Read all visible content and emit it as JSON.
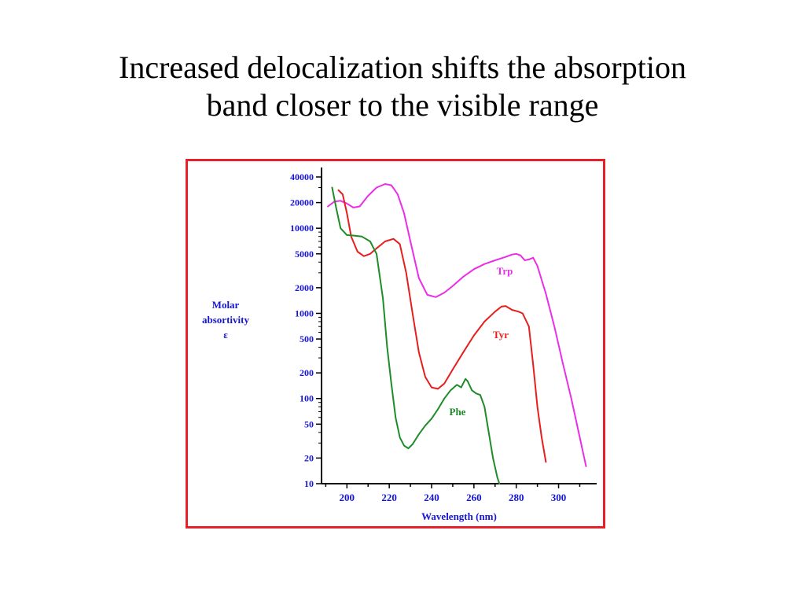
{
  "slide": {
    "title_line1": "Increased delocalization shifts the absorption",
    "title_line2": "band closer to the visible range"
  },
  "colors": {
    "frame": "#e8202a",
    "axis_label": "#1515d6",
    "trp": "#ea2ee8",
    "tyr": "#e61e1e",
    "phe": "#1e8c28"
  },
  "chart_data": {
    "type": "line",
    "title": "",
    "xlabel": "Wavelength (nm)",
    "ylabel_lines": [
      "Molar",
      "absortivity",
      "ε"
    ],
    "yscale": "log",
    "xlim": [
      188,
      318
    ],
    "ylim": [
      10,
      50000
    ],
    "x_ticks": [
      200,
      220,
      240,
      260,
      280,
      300
    ],
    "y_ticks": [
      10,
      20,
      50,
      100,
      200,
      500,
      1000,
      2000,
      5000,
      10000,
      20000,
      40000
    ],
    "y_tick_labels": [
      "10",
      "20",
      "50",
      "100",
      "200",
      "500",
      "1000",
      "2000",
      "5000",
      "10000",
      "20000",
      "40000"
    ],
    "grid": false,
    "series": [
      {
        "name": "Trp",
        "color": "#ea2ee8",
        "x": [
          191,
          194,
          197,
          200,
          203,
          206,
          210,
          214,
          218,
          221,
          224,
          227,
          230,
          234,
          238,
          242,
          246,
          250,
          255,
          260,
          265,
          270,
          275,
          278,
          280,
          282,
          284,
          286,
          288,
          290,
          294,
          298,
          302,
          306,
          310,
          313
        ],
        "y": [
          18000,
          20500,
          21000,
          19500,
          17500,
          18000,
          24000,
          30000,
          33000,
          32000,
          25000,
          15000,
          7000,
          2600,
          1650,
          1550,
          1750,
          2100,
          2700,
          3300,
          3800,
          4200,
          4600,
          4900,
          5000,
          4800,
          4200,
          4300,
          4500,
          3600,
          1700,
          700,
          260,
          100,
          35,
          16
        ]
      },
      {
        "name": "Tyr",
        "color": "#e61e1e",
        "x": [
          196,
          198,
          200,
          202,
          205,
          208,
          211,
          214,
          218,
          222,
          225,
          228,
          231,
          234,
          237,
          240,
          243,
          246,
          250,
          255,
          260,
          265,
          270,
          273,
          275,
          278,
          281,
          283,
          286,
          288,
          290,
          292,
          294
        ],
        "y": [
          28000,
          25000,
          15000,
          8000,
          5300,
          4700,
          5000,
          5800,
          7000,
          7500,
          6500,
          3000,
          1000,
          350,
          180,
          135,
          130,
          150,
          220,
          350,
          550,
          800,
          1050,
          1200,
          1220,
          1100,
          1050,
          1000,
          700,
          250,
          80,
          35,
          18
        ]
      },
      {
        "name": "Phe",
        "color": "#1e8c28",
        "x": [
          193,
          195,
          197,
          200,
          203,
          207,
          211,
          214,
          217,
          219,
          221,
          223,
          225,
          227,
          229,
          231,
          234,
          237,
          240,
          243,
          246,
          249,
          252,
          254,
          256,
          257,
          259,
          261,
          263,
          265,
          267,
          269,
          271,
          272
        ],
        "y": [
          30000,
          17000,
          10000,
          8300,
          8200,
          8000,
          7000,
          5000,
          1500,
          400,
          150,
          60,
          35,
          28,
          26,
          29,
          38,
          48,
          58,
          75,
          100,
          125,
          145,
          135,
          170,
          160,
          125,
          115,
          110,
          80,
          40,
          20,
          12,
          10
        ]
      }
    ]
  }
}
